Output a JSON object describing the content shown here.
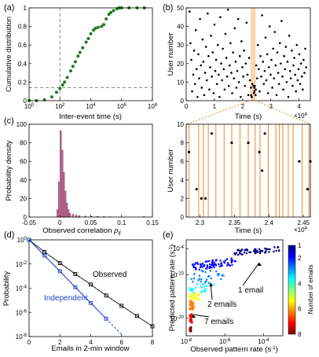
{
  "panel_labels": [
    "(a)",
    "(b)",
    "(c)",
    "(d)",
    "(e)"
  ],
  "chart_data": [
    {
      "id": "a",
      "type": "line",
      "xlabel": "Inter-event time (s)",
      "ylabel": "Cumulative distribution",
      "xscale": "log",
      "xlim": [
        1,
        100000000
      ],
      "ylim": [
        0,
        1
      ],
      "xticks": [
        "10^0",
        "10^2",
        "10^4",
        "10^6",
        "10^8"
      ],
      "yticks": [
        "0",
        "0.2",
        "0.4",
        "0.6",
        "0.8",
        "1"
      ],
      "ref_vline_x": 100,
      "ref_hline_y": 0.14,
      "series": [
        {
          "color": "#1f7a1f",
          "x": [
            1,
            3,
            10,
            30,
            60,
            100,
            150,
            200,
            300,
            500,
            700,
            1000,
            1500,
            2000,
            3000,
            5000,
            7000,
            10000,
            15000,
            20000,
            30000,
            50000,
            70000,
            100000,
            150000,
            200000,
            300000,
            500000,
            700000,
            1000000,
            3000000,
            10000000,
            30000000
          ],
          "y": [
            0.0,
            0.0,
            0.01,
            0.04,
            0.09,
            0.13,
            0.17,
            0.2,
            0.25,
            0.32,
            0.37,
            0.42,
            0.48,
            0.52,
            0.57,
            0.63,
            0.67,
            0.72,
            0.76,
            0.78,
            0.79,
            0.8,
            0.82,
            0.88,
            0.93,
            0.95,
            0.97,
            0.99,
            1.0,
            1.0,
            1.0,
            1.0,
            1.0
          ]
        }
      ]
    },
    {
      "id": "b-top",
      "type": "scatter",
      "xlabel": "Time (s)",
      "ylabel": "User number",
      "xlim": [
        0,
        44000
      ],
      "ylim": [
        0,
        50
      ],
      "xticks": [
        "0",
        "1",
        "2",
        "3",
        "4"
      ],
      "yticks": [
        "0",
        "10",
        "20",
        "30",
        "40",
        "50"
      ],
      "x_multiplier": "×10^4",
      "zoom_window": [
        22800,
        24600
      ],
      "points": [
        [
          1200,
          48
        ],
        [
          1500,
          31
        ],
        [
          1800,
          22
        ],
        [
          2100,
          5
        ],
        [
          2500,
          14
        ],
        [
          2800,
          27
        ],
        [
          3100,
          9
        ],
        [
          3400,
          38
        ],
        [
          3700,
          17
        ],
        [
          4000,
          2
        ],
        [
          4300,
          25
        ],
        [
          4600,
          12
        ],
        [
          4900,
          44
        ],
        [
          5200,
          19
        ],
        [
          5500,
          7
        ],
        [
          5800,
          33
        ],
        [
          6100,
          21
        ],
        [
          6400,
          3
        ],
        [
          6700,
          15
        ],
        [
          7000,
          29
        ],
        [
          7300,
          11
        ],
        [
          7600,
          47
        ],
        [
          7900,
          24
        ],
        [
          8200,
          6
        ],
        [
          8500,
          18
        ],
        [
          8800,
          35
        ],
        [
          9100,
          13
        ],
        [
          9400,
          26
        ],
        [
          9700,
          4
        ],
        [
          10000,
          41
        ],
        [
          10300,
          16
        ],
        [
          10600,
          22
        ],
        [
          10900,
          9
        ],
        [
          11200,
          30
        ],
        [
          11500,
          14
        ],
        [
          11800,
          2
        ],
        [
          12100,
          45
        ],
        [
          12400,
          20
        ],
        [
          12700,
          11
        ],
        [
          13000,
          28
        ],
        [
          13300,
          17
        ],
        [
          13600,
          6
        ],
        [
          13900,
          36
        ],
        [
          14200,
          23
        ],
        [
          14500,
          13
        ],
        [
          14800,
          49
        ],
        [
          15100,
          8
        ],
        [
          15400,
          19
        ],
        [
          15700,
          31
        ],
        [
          16000,
          15
        ],
        [
          16300,
          4
        ],
        [
          16600,
          26
        ],
        [
          16900,
          12
        ],
        [
          17200,
          39
        ],
        [
          17500,
          21
        ],
        [
          17800,
          7
        ],
        [
          18100,
          16
        ],
        [
          18400,
          44
        ],
        [
          18700,
          10
        ],
        [
          19000,
          24
        ],
        [
          19300,
          2
        ],
        [
          19600,
          32
        ],
        [
          19900,
          18
        ],
        [
          20200,
          13
        ],
        [
          20500,
          27
        ],
        [
          20800,
          8
        ],
        [
          21100,
          20
        ],
        [
          21400,
          42
        ],
        [
          21700,
          14
        ],
        [
          22000,
          3
        ],
        [
          22300,
          23
        ],
        [
          22600,
          11
        ],
        [
          22950,
          7
        ],
        [
          23000,
          3
        ],
        [
          23150,
          2
        ],
        [
          23250,
          2
        ],
        [
          23400,
          9
        ],
        [
          23800,
          8
        ],
        [
          24000,
          4
        ],
        [
          24150,
          7
        ],
        [
          24200,
          5
        ],
        [
          24350,
          8
        ],
        [
          24600,
          3
        ],
        [
          24650,
          6
        ],
        [
          24800,
          19
        ],
        [
          25100,
          12
        ],
        [
          25400,
          30
        ],
        [
          25700,
          17
        ],
        [
          26000,
          5
        ],
        [
          26300,
          24
        ],
        [
          26600,
          13
        ],
        [
          26900,
          46
        ],
        [
          27200,
          21
        ],
        [
          27500,
          9
        ],
        [
          27800,
          16
        ],
        [
          28100,
          34
        ],
        [
          28400,
          11
        ],
        [
          28700,
          25
        ],
        [
          29000,
          4
        ],
        [
          29300,
          18
        ],
        [
          29600,
          40
        ],
        [
          29900,
          14
        ],
        [
          30200,
          22
        ],
        [
          30500,
          7
        ],
        [
          30800,
          28
        ],
        [
          31100,
          12
        ],
        [
          31400,
          37
        ],
        [
          31700,
          19
        ],
        [
          32000,
          3
        ],
        [
          32300,
          26
        ],
        [
          32600,
          15
        ],
        [
          32900,
          9
        ],
        [
          33200,
          31
        ],
        [
          33500,
          20
        ],
        [
          33800,
          43
        ],
        [
          34100,
          13
        ],
        [
          34400,
          6
        ],
        [
          34700,
          24
        ],
        [
          35000,
          17
        ],
        [
          35300,
          29
        ],
        [
          35600,
          10
        ],
        [
          35900,
          21
        ],
        [
          36200,
          2
        ],
        [
          36500,
          35
        ],
        [
          36800,
          16
        ],
        [
          37100,
          12
        ],
        [
          37400,
          27
        ],
        [
          37700,
          8
        ],
        [
          38000,
          19
        ],
        [
          38300,
          23
        ],
        [
          38600,
          14
        ],
        [
          38900,
          5
        ],
        [
          39200,
          30
        ],
        [
          39500,
          11
        ],
        [
          39800,
          17
        ],
        [
          40100,
          25
        ],
        [
          40400,
          9
        ],
        [
          40700,
          20
        ],
        [
          41000,
          13
        ],
        [
          41300,
          6
        ],
        [
          41600,
          22
        ],
        [
          41900,
          15
        ],
        [
          42200,
          28
        ],
        [
          42500,
          18
        ]
      ]
    },
    {
      "id": "b-bottom",
      "type": "scatter",
      "xlabel": "Time (s)",
      "ylabel": "User number",
      "xlim": [
        22800,
        24600
      ],
      "ylim": [
        0,
        10
      ],
      "xticks": [
        "2.3",
        "2.35",
        "2.4",
        "2.45"
      ],
      "yticks": [
        "0",
        "2",
        "4",
        "6",
        "8",
        "10"
      ],
      "x_multiplier": "×10^4",
      "vlines_x": [
        22840,
        22980,
        23050,
        23120,
        23230,
        23350,
        23460,
        23580,
        23700,
        23800,
        23870,
        23990,
        24100,
        24150,
        24200,
        24280,
        24350,
        24480,
        24580
      ],
      "points": [
        [
          22840,
          7
        ],
        [
          22950,
          3
        ],
        [
          23020,
          2
        ],
        [
          23080,
          2
        ],
        [
          23170,
          9
        ],
        [
          23460,
          8
        ],
        [
          23700,
          8
        ],
        [
          23860,
          7
        ],
        [
          23900,
          5
        ],
        [
          23940,
          9
        ],
        [
          24440,
          6
        ],
        [
          24560,
          3
        ],
        [
          24600,
          6
        ]
      ]
    },
    {
      "id": "c",
      "type": "bar",
      "xlabel": "Observed correlation ρ_ij",
      "ylabel": "Probability density",
      "xlim": [
        -0.05,
        0.15
      ],
      "ylim": [
        0,
        100
      ],
      "xticks": [
        "-0.05",
        "0",
        "0.05",
        "0.1",
        "0.15"
      ],
      "yticks": [
        "0",
        "20",
        "40",
        "60",
        "80",
        "100"
      ],
      "bar_color": "#c7709a",
      "bin_width": 0.0025,
      "bin_starts": [
        -0.005,
        -0.0025,
        0.0,
        0.0025,
        0.005,
        0.0075,
        0.01,
        0.0125,
        0.015,
        0.02,
        0.025,
        0.03,
        0.04,
        0.05,
        0.06,
        0.07,
        0.08,
        0.135
      ],
      "values": [
        8,
        38,
        93,
        72,
        48,
        28,
        15,
        8,
        4,
        3,
        2,
        1.5,
        1,
        0.8,
        0.6,
        0.5,
        0.4,
        0.5
      ]
    },
    {
      "id": "d",
      "type": "line",
      "xlabel": "Emails in 2-min window",
      "ylabel": "Probability",
      "yscale": "log",
      "xlim": [
        0,
        8
      ],
      "ylim": [
        1e-08,
        1
      ],
      "xticks": [
        "0",
        "2",
        "4",
        "6",
        "8"
      ],
      "yticks": [
        "10^0",
        "10^-2",
        "10^-4",
        "10^-6",
        "10^-8"
      ],
      "series": [
        {
          "name": "Observed",
          "color": "#000000",
          "x": [
            0,
            1,
            2,
            3,
            4,
            5,
            6,
            7,
            8
          ],
          "y": [
            1.0,
            0.1,
            0.012,
            0.0015,
            0.0002,
            2.5e-05,
            3.5e-06,
            5e-07,
            7e-08
          ]
        },
        {
          "name": "Independent",
          "color": "#1f3fcf",
          "x": [
            0,
            1,
            2,
            3,
            4,
            5
          ],
          "y": [
            1.0,
            0.05,
            0.0025,
            0.00012,
            6e-06,
            3e-07
          ]
        }
      ]
    },
    {
      "id": "e",
      "type": "scatter",
      "xlabel": "Observed pattern rate (s^-1)",
      "ylabel": "Predicted pattern rate (s^-1)",
      "xscale": "log",
      "yscale": "log",
      "xticks": [
        "10^-8",
        "10^-6",
        "10^-4"
      ],
      "yticks": [
        "10^-4",
        "10^-10",
        "10^-20"
      ],
      "colorbar": {
        "label": "Number of emails",
        "min": 1,
        "max": 8,
        "ticks": [
          "1",
          "2",
          "4",
          "6",
          "8"
        ],
        "colors": [
          "#00007f",
          "#0000ff",
          "#007fff",
          "#00ffff",
          "#7fff7f",
          "#ffff00",
          "#ff7f00",
          "#ff0000",
          "#7f0000"
        ]
      },
      "annotations": [
        {
          "text": "1 email",
          "x": 0.0001,
          "y": 1e-07
        },
        {
          "text": "2 emails",
          "x": 1e-06,
          "y": 1e-12
        },
        {
          "text": "7 emails",
          "x": 1e-06,
          "y": 1e-21
        }
      ],
      "groups": [
        {
          "n_emails": 1,
          "x_range": [
            3e-06,
            0.0008
          ],
          "y_range": [
            3e-06,
            0.0003
          ]
        },
        {
          "n_emails": 2,
          "x_range": [
            2e-08,
            4e-06
          ],
          "y_range": [
            1e-09,
            1e-06
          ]
        },
        {
          "n_emails": 3,
          "x_range": [
            1.5e-08,
            1e-06
          ],
          "y_range": [
            1e-12,
            1e-09
          ]
        },
        {
          "n_emails": 4,
          "x_range": [
            1.5e-08,
            3e-07
          ],
          "y_range": [
            1e-14,
            1e-12
          ]
        },
        {
          "n_emails": 5,
          "x_range": [
            1.5e-08,
            5e-08
          ],
          "y_range": [
            1e-16,
            1e-14
          ]
        },
        {
          "n_emails": 6,
          "x_range": [
            1.5e-08,
            2.5e-08
          ],
          "y_range": [
            1e-18,
            1e-16
          ]
        },
        {
          "n_emails": 7,
          "x_range": [
            1.5e-08,
            2e-08
          ],
          "y_range": [
            1e-21,
            1e-19
          ]
        },
        {
          "n_emails": 8,
          "x_range": [
            1.5e-08,
            1.8e-08
          ],
          "y_range": [
            1e-23,
            1e-22
          ]
        }
      ]
    }
  ]
}
